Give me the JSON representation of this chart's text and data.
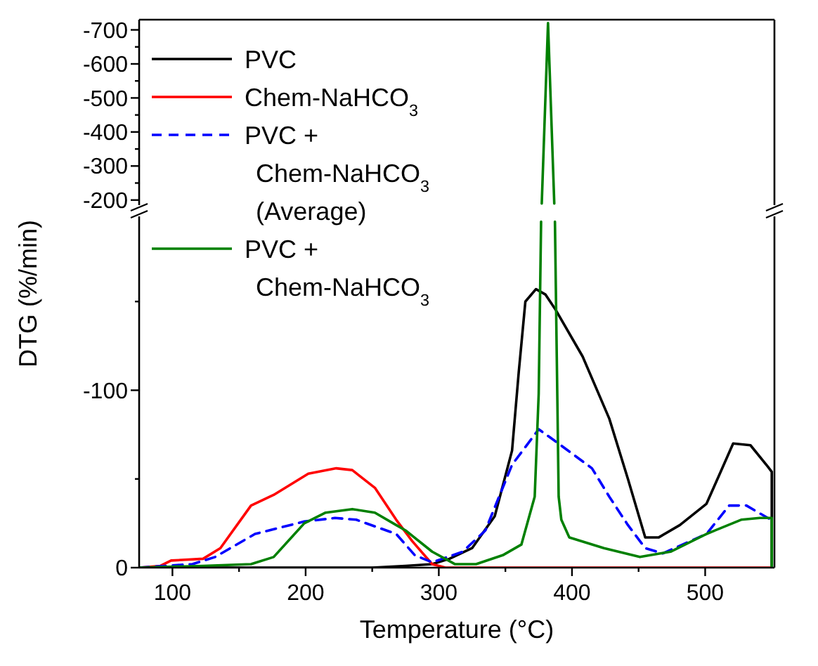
{
  "chart_data": [
    {
      "type": "line",
      "xlim": [
        75,
        552
      ],
      "ylim": [
        -185,
        -730
      ],
      "yticks": [
        -200,
        {
          "value": -250,
          "label": null
        },
        -300,
        {
          "value": -350,
          "label": null
        },
        -400,
        {
          "value": -450,
          "label": null
        },
        -500,
        {
          "value": -550,
          "label": null
        },
        -600,
        {
          "value": -650,
          "label": null
        },
        -700
      ],
      "tick_labels": "y",
      "series": [
        {
          "color": "#008000",
          "x": [
            377.3,
            382,
            386.7
          ],
          "values": [
            -190,
            -720,
            -190
          ]
        }
      ]
    },
    {
      "type": "line",
      "xlabel": "Temperature (°C)",
      "ylabel": "DTG (%/min)",
      "xlim": [
        75,
        552
      ],
      "ylim": [
        0,
        -198
      ],
      "xticks": [
        100,
        {
          "value": 150,
          "label": null
        },
        200,
        {
          "value": 250,
          "label": null
        },
        300,
        {
          "value": 350,
          "label": null
        },
        400,
        {
          "value": 450,
          "label": null
        },
        500
      ],
      "yticks": [
        0,
        {
          "value": -50,
          "label": null
        },
        -100,
        {
          "value": -150,
          "label": null
        }
      ],
      "legend": "top left",
      "series": [
        {
          "name": "PVC",
          "color": "#000000",
          "x": [
            75,
            250,
            275,
            295,
            308,
            325,
            342,
            355,
            360,
            365,
            373,
            380,
            388,
            408,
            428,
            442,
            455,
            465,
            481,
            501,
            511,
            521,
            534,
            547,
            550,
            550
          ],
          "values": [
            0,
            0,
            -1,
            -2,
            -5,
            -11,
            -29,
            -66,
            -110,
            -150,
            -157,
            -154,
            -145,
            -119,
            -84,
            -50,
            -17,
            -17,
            -24,
            -36,
            -53,
            -70,
            -69,
            -57,
            -54,
            0
          ]
        },
        {
          "name": "Chem-NaHCO$_{3}$",
          "color": "#ff0000",
          "x": [
            75,
            91,
            99,
            123,
            136,
            159,
            176,
            202,
            223,
            235,
            252,
            268,
            280,
            295,
            305,
            550
          ],
          "values": [
            0,
            -1,
            -4,
            -5,
            -11,
            -35,
            -41,
            -53,
            -56,
            -55,
            -45,
            -27,
            -15,
            -2,
            0,
            0
          ]
        },
        {
          "name": "PVC + Chem-NaHCO$_{3}$ (Average)",
          "color": "#0000ff",
          "line_style": "dashed",
          "x": [
            75,
            115,
            132,
            162,
            199,
            222,
            238,
            268,
            282,
            295,
            318,
            335,
            355,
            375,
            388,
            415,
            428,
            442,
            455,
            468,
            501,
            518,
            531,
            547,
            550
          ],
          "values": [
            0,
            -2,
            -6,
            -19,
            -26,
            -28,
            -27,
            -19,
            -7,
            -3,
            -9,
            -21,
            -58,
            -78,
            -71,
            -56,
            -40,
            -24,
            -11,
            -8,
            -19,
            -35,
            -35,
            -28,
            -27
          ]
        },
        {
          "name": "PVC + Chem-NaHCO$_{3}$",
          "color": "#008000",
          "x": [
            75,
            123,
            159,
            176,
            199,
            215,
            235,
            252,
            268,
            275,
            295,
            312,
            328,
            348,
            362,
            372,
            375,
            376.8,
            382,
            387.2,
            390,
            392,
            398,
            424,
            451,
            474,
            501,
            527,
            541,
            550,
            550
          ],
          "values": [
            0,
            -1,
            -2,
            -6,
            -25,
            -31,
            -33,
            -31,
            -24,
            -21,
            -9,
            -2,
            -2,
            -7,
            -13,
            -40,
            -98,
            -195,
            null,
            -195,
            -40,
            -27,
            -17,
            -11,
            -6,
            -9,
            -19,
            -27,
            -28,
            -28,
            0
          ]
        }
      ]
    }
  ]
}
